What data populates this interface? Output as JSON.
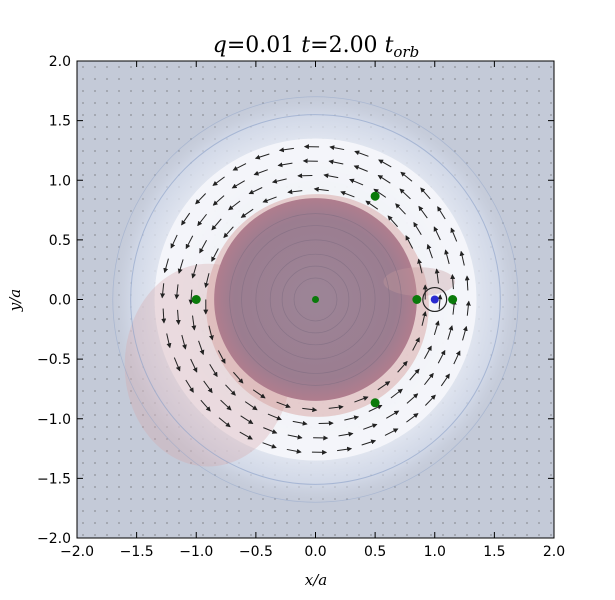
{
  "chart_data": {
    "type": "scatter",
    "title": "q=0.01    t=2.00 t_orb",
    "title_parts": {
      "q_sym": "q",
      "q_val": "=0.01",
      "t_sym": "t",
      "t_val": "=2.00 ",
      "t_unit": "t",
      "t_sub": "orb"
    },
    "xlabel": "x/a",
    "ylabel": "y/a",
    "xlim": [
      -2.0,
      2.0
    ],
    "ylim": [
      -2.0,
      2.0
    ],
    "xticks": [
      -2.0,
      -1.5,
      -1.0,
      -0.5,
      0.0,
      0.5,
      1.0,
      1.5,
      2.0
    ],
    "yticks": [
      -2.0,
      -1.5,
      -1.0,
      -0.5,
      0.0,
      0.5,
      1.0,
      1.5,
      2.0
    ],
    "xtick_labels": [
      "−2.0",
      "−1.5",
      "−1.0",
      "−0.5",
      "0.0",
      "0.5",
      "1.0",
      "1.5",
      "2.0"
    ],
    "ytick_labels": [
      "−2.0",
      "−1.5",
      "−1.0",
      "−0.5",
      "0.0",
      "0.5",
      "1.0",
      "1.5",
      "2.0"
    ],
    "grid": false,
    "background_color": "#c4cad8",
    "cavity_color": "#9a7f92",
    "planet_color": "#2a2ad0",
    "point_color": "#0a7a0a",
    "lagrange_points": {
      "x": [
        0.0,
        -1.0,
        0.85,
        1.15,
        0.5,
        0.5
      ],
      "y": [
        0.0,
        0.0,
        0.0,
        0.0,
        0.866,
        -0.866
      ]
    },
    "planet": {
      "x": 1.0,
      "y": 0.0
    },
    "cavity_radius": 0.85,
    "spiral_outer_radius": 1.35
  }
}
